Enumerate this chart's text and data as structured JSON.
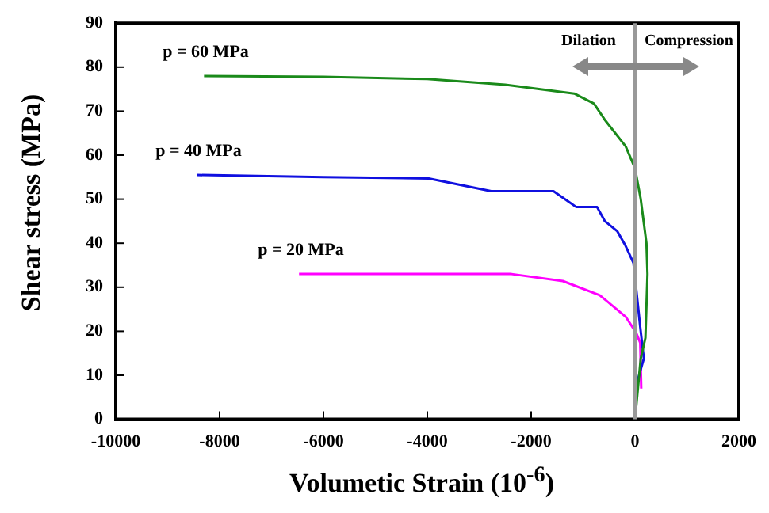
{
  "chart_data": {
    "type": "line",
    "xlabel": "Volumetic Strain (10$^{-6}$)",
    "ylabel": "Shear stress (MPa)",
    "xlim": [
      -10000,
      2000
    ],
    "xticks": [
      -10000,
      -8000,
      -6000,
      -4000,
      -2000,
      0,
      2000
    ],
    "ylim": [
      0,
      90
    ],
    "yticks": [
      0,
      10,
      20,
      30,
      40,
      50,
      60,
      70,
      80,
      90
    ],
    "grid": false,
    "legend": false,
    "marker": "none",
    "line_style": "solid",
    "ref_lines": [
      {
        "axis": "x",
        "value": 0,
        "color": "#999999"
      }
    ],
    "annotations": [
      "Dilation",
      "Compression"
    ],
    "series": [
      {
        "name": "p = 60 MPa",
        "color": "#1a8a1a",
        "x": [
          -8300,
          -6000,
          -4000,
          -2500,
          -1170,
          -790,
          -580,
          -180,
          0,
          110,
          220,
          240,
          200,
          110,
          0
        ],
        "values": [
          78,
          77.8,
          77.3,
          76,
          74,
          71.7,
          68,
          62,
          57,
          50,
          40,
          33,
          18.5,
          13.8,
          0
        ]
      },
      {
        "name": "p = 40 MPa",
        "color": "#1010e0",
        "x": [
          -8440,
          -6000,
          -3970,
          -2770,
          -1570,
          -1130,
          -730,
          -580,
          -340,
          -190,
          -30,
          100,
          170,
          20,
          0
        ],
        "values": [
          55.5,
          55,
          54.7,
          51.8,
          51.8,
          48.2,
          48.2,
          45,
          42.7,
          39.6,
          35.5,
          21,
          13.8,
          7.6,
          0
        ]
      },
      {
        "name": "p = 20 MPa",
        "color": "#ff00ff",
        "x": [
          -6470,
          -4000,
          -2380,
          -1390,
          -680,
          -180,
          20,
          100,
          120
        ],
        "values": [
          33,
          33,
          33,
          31.4,
          28.2,
          23.3,
          19.7,
          17.4,
          7
        ]
      }
    ]
  }
}
